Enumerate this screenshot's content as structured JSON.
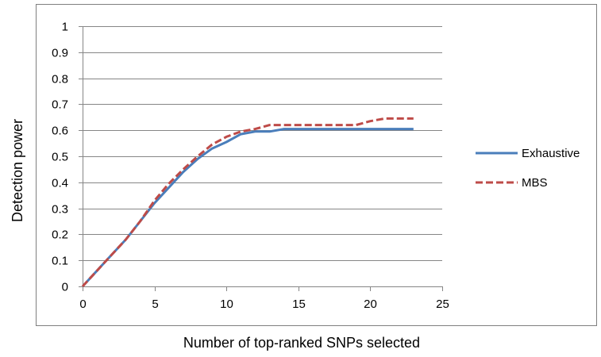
{
  "chart_data": {
    "type": "line",
    "title": "",
    "xlabel": "Number of top-ranked SNPs selected",
    "ylabel": "Detection power",
    "xlim": [
      0,
      25
    ],
    "ylim": [
      0,
      1
    ],
    "xticks": [
      0,
      5,
      10,
      15,
      20,
      25
    ],
    "yticks": [
      0,
      0.1,
      0.2,
      0.3,
      0.4,
      0.5,
      0.6,
      0.7,
      0.8,
      0.9,
      1
    ],
    "ytick_labels": [
      "0",
      "0.1",
      "0.2",
      "0.3",
      "0.4",
      "0.5",
      "0.6",
      "0.7",
      "0.8",
      "0.9",
      "1"
    ],
    "grid": "horizontal",
    "legend_position": "right",
    "series": [
      {
        "name": "Exhaustive",
        "color": "#4a7ebb",
        "style": "solid",
        "x": [
          0,
          1,
          2,
          3,
          4,
          5,
          6,
          7,
          8,
          9,
          10,
          11,
          12,
          13,
          14,
          15,
          16,
          17,
          18,
          19,
          20,
          21,
          22,
          23
        ],
        "y": [
          0,
          0.06,
          0.12,
          0.18,
          0.25,
          0.32,
          0.38,
          0.44,
          0.49,
          0.53,
          0.555,
          0.585,
          0.595,
          0.595,
          0.605,
          0.605,
          0.605,
          0.605,
          0.605,
          0.605,
          0.605,
          0.605,
          0.605,
          0.605
        ]
      },
      {
        "name": "MBS",
        "color": "#be4b48",
        "style": "dashed",
        "x": [
          0,
          1,
          2,
          3,
          4,
          5,
          6,
          7,
          8,
          9,
          10,
          11,
          12,
          13,
          14,
          15,
          16,
          17,
          18,
          19,
          20,
          21,
          22,
          23
        ],
        "y": [
          0,
          0.06,
          0.12,
          0.18,
          0.25,
          0.33,
          0.395,
          0.45,
          0.5,
          0.545,
          0.575,
          0.595,
          0.605,
          0.62,
          0.62,
          0.62,
          0.62,
          0.62,
          0.62,
          0.62,
          0.635,
          0.645,
          0.645,
          0.645
        ]
      }
    ]
  }
}
